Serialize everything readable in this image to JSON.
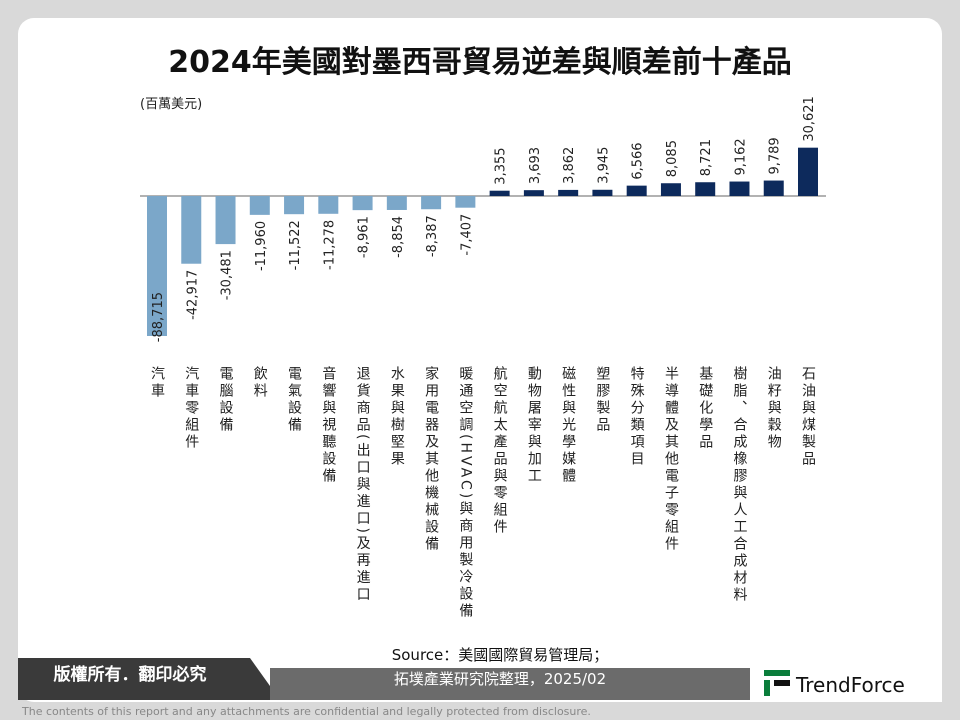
{
  "chart_data": {
    "type": "bar",
    "title": "2024年美國對墨西哥貿易逆差與順差前十產品",
    "unit": "(百萬美元)",
    "categories": [
      "汽車",
      "汽車零組件",
      "電腦設備",
      "飲料",
      "電氣設備",
      "音響與視聽設備",
      "退貨商品(出口與進口)及再進口",
      "水果與樹堅果",
      "家用電器及其他機械設備",
      "暖通空調(HVAC)與商用製冷設備",
      "航空航太產品與零組件",
      "動物屠宰與加工",
      "磁性與光學媒體",
      "塑膠製品",
      "特殊分類項目",
      "半導體及其他電子零組件",
      "基礎化學品",
      "樹脂、合成橡膠與人工合成材料",
      "油籽與穀物",
      "石油與煤製品"
    ],
    "values": [
      -88715,
      -42917,
      -30481,
      -11960,
      -11522,
      -11278,
      -8961,
      -8854,
      -8387,
      -7407,
      3355,
      3693,
      3862,
      3945,
      6566,
      8085,
      8721,
      9162,
      9789,
      30621
    ],
    "value_labels": [
      "-88,715",
      "-42,917",
      "-30,481",
      "-11,960",
      "-11,522",
      "-11,278",
      "-8,961",
      "-8,854",
      "-8,387",
      "-7,407",
      "3,355",
      "3,693",
      "3,862",
      "3,945",
      "6,566",
      "8,085",
      "8,721",
      "9,162",
      "9,789",
      "30,621"
    ],
    "color_negative": "#7ba7c9",
    "color_positive": "#0d2a5c"
  },
  "footer": {
    "source": [
      "Source：美國國際貿易管理局；",
      "拓墣產業研究院整理，2025/02"
    ],
    "copyright": "版權所有．翻印必究",
    "logo": "TrendForce",
    "disclaimer": "The contents of this report and any attachments are confidential and legally protected from disclosure."
  }
}
